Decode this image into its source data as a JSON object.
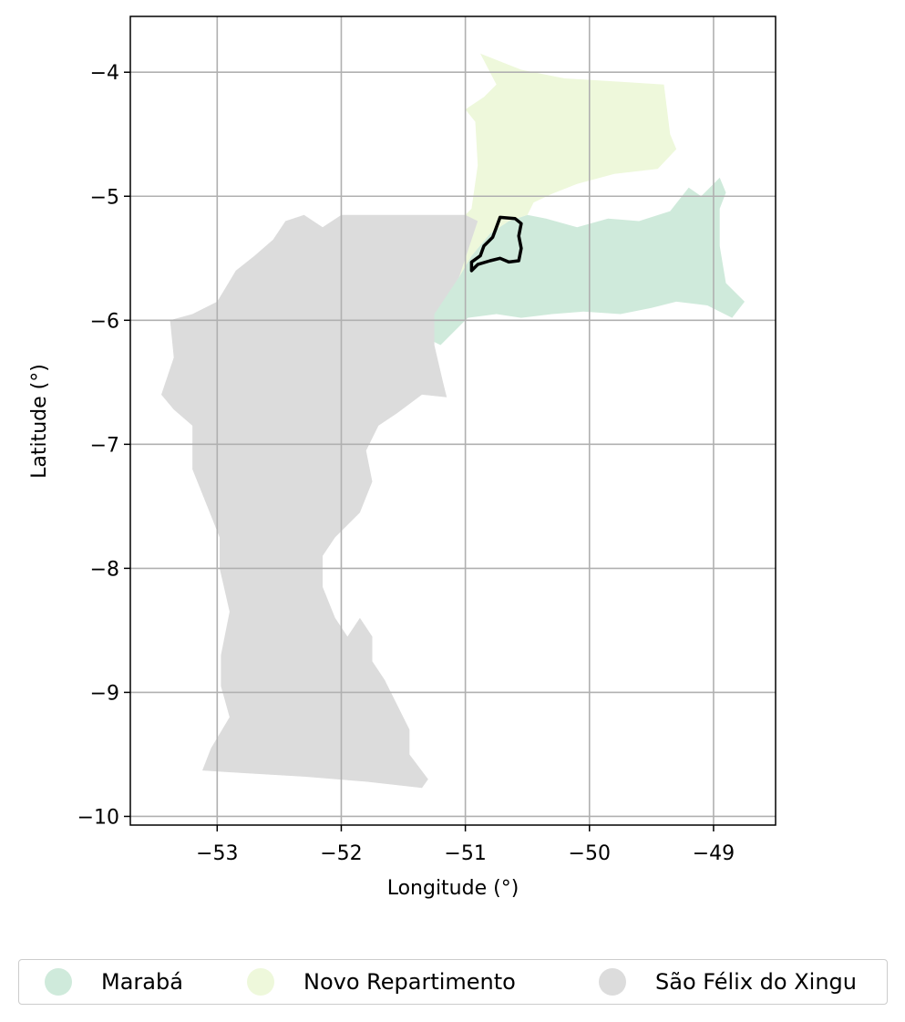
{
  "chart_data": {
    "type": "map",
    "xlabel": "Longitude (°)",
    "ylabel": "Latitude (°)",
    "xlim": [
      -53.7,
      -48.5
    ],
    "ylim": [
      -10.07,
      -3.55
    ],
    "grid": true,
    "legend_position": "bottom",
    "x_ticks": [
      {
        "value": -53,
        "label": "−53"
      },
      {
        "value": -52,
        "label": "−52"
      },
      {
        "value": -51,
        "label": "−51"
      },
      {
        "value": -50,
        "label": "−50"
      },
      {
        "value": -49,
        "label": "−49"
      }
    ],
    "y_ticks": [
      {
        "value": -4,
        "label": "−4"
      },
      {
        "value": -5,
        "label": "−5"
      },
      {
        "value": -6,
        "label": "−6"
      },
      {
        "value": -7,
        "label": "−7"
      },
      {
        "value": -8,
        "label": "−8"
      },
      {
        "value": -9,
        "label": "−9"
      },
      {
        "value": -10,
        "label": "−10"
      }
    ],
    "regions": [
      {
        "name": "Marabá",
        "color": "#cfeadb",
        "polygon": [
          [
            -50.35,
            -5.18
          ],
          [
            -50.1,
            -5.25
          ],
          [
            -49.85,
            -5.18
          ],
          [
            -49.6,
            -5.2
          ],
          [
            -49.35,
            -5.12
          ],
          [
            -49.2,
            -4.93
          ],
          [
            -49.1,
            -5.0
          ],
          [
            -49.0,
            -4.9
          ],
          [
            -48.95,
            -4.85
          ],
          [
            -48.9,
            -4.97
          ],
          [
            -48.95,
            -5.1
          ],
          [
            -48.95,
            -5.4
          ],
          [
            -48.9,
            -5.7
          ],
          [
            -48.75,
            -5.85
          ],
          [
            -48.85,
            -5.98
          ],
          [
            -49.05,
            -5.88
          ],
          [
            -49.3,
            -5.85
          ],
          [
            -49.5,
            -5.9
          ],
          [
            -49.75,
            -5.95
          ],
          [
            -50.05,
            -5.93
          ],
          [
            -50.3,
            -5.95
          ],
          [
            -50.55,
            -5.98
          ],
          [
            -50.75,
            -5.95
          ],
          [
            -50.98,
            -5.98
          ],
          [
            -51.1,
            -6.1
          ],
          [
            -51.2,
            -6.2
          ],
          [
            -51.3,
            -6.15
          ],
          [
            -51.4,
            -6.0
          ],
          [
            -51.2,
            -5.85
          ],
          [
            -51.05,
            -5.65
          ],
          [
            -50.95,
            -5.48
          ],
          [
            -50.8,
            -5.3
          ],
          [
            -50.65,
            -5.2
          ],
          [
            -50.5,
            -5.15
          ]
        ]
      },
      {
        "name": "Novo Repartimento",
        "color": "#eef8db",
        "polygon": [
          [
            -50.88,
            -3.85
          ],
          [
            -50.55,
            -3.98
          ],
          [
            -50.2,
            -4.05
          ],
          [
            -49.7,
            -4.08
          ],
          [
            -49.4,
            -4.1
          ],
          [
            -49.35,
            -4.5
          ],
          [
            -49.3,
            -4.62
          ],
          [
            -49.45,
            -4.78
          ],
          [
            -49.8,
            -4.82
          ],
          [
            -50.1,
            -4.9
          ],
          [
            -50.3,
            -4.98
          ],
          [
            -50.45,
            -5.05
          ],
          [
            -50.5,
            -5.15
          ],
          [
            -50.65,
            -5.2
          ],
          [
            -50.8,
            -5.3
          ],
          [
            -50.95,
            -5.48
          ],
          [
            -51.05,
            -5.65
          ],
          [
            -51.1,
            -5.45
          ],
          [
            -51.05,
            -5.2
          ],
          [
            -50.95,
            -5.1
          ],
          [
            -50.9,
            -4.75
          ],
          [
            -50.92,
            -4.4
          ],
          [
            -51.0,
            -4.3
          ],
          [
            -50.85,
            -4.2
          ],
          [
            -50.75,
            -4.1
          ]
        ]
      },
      {
        "name": "São Félix do Xingu",
        "color": "#dcdcdc",
        "polygon": [
          [
            -52.0,
            -5.15
          ],
          [
            -51.7,
            -5.15
          ],
          [
            -51.3,
            -5.15
          ],
          [
            -51.0,
            -5.15
          ],
          [
            -50.9,
            -5.2
          ],
          [
            -50.95,
            -5.35
          ],
          [
            -51.0,
            -5.5
          ],
          [
            -51.05,
            -5.65
          ],
          [
            -51.15,
            -5.8
          ],
          [
            -51.25,
            -5.95
          ],
          [
            -51.25,
            -6.2
          ],
          [
            -51.18,
            -6.5
          ],
          [
            -51.15,
            -6.62
          ],
          [
            -51.35,
            -6.6
          ],
          [
            -51.55,
            -6.75
          ],
          [
            -51.7,
            -6.85
          ],
          [
            -51.8,
            -7.05
          ],
          [
            -51.75,
            -7.3
          ],
          [
            -51.85,
            -7.55
          ],
          [
            -52.05,
            -7.75
          ],
          [
            -52.15,
            -7.9
          ],
          [
            -52.15,
            -8.15
          ],
          [
            -52.05,
            -8.4
          ],
          [
            -51.95,
            -8.55
          ],
          [
            -51.85,
            -8.4
          ],
          [
            -51.75,
            -8.55
          ],
          [
            -51.75,
            -8.75
          ],
          [
            -51.65,
            -8.9
          ],
          [
            -51.55,
            -9.1
          ],
          [
            -51.45,
            -9.3
          ],
          [
            -51.45,
            -9.5
          ],
          [
            -51.3,
            -9.7
          ],
          [
            -51.35,
            -9.77
          ],
          [
            -51.8,
            -9.72
          ],
          [
            -52.3,
            -9.68
          ],
          [
            -52.8,
            -9.65
          ],
          [
            -53.12,
            -9.63
          ],
          [
            -53.05,
            -9.45
          ],
          [
            -52.9,
            -9.2
          ],
          [
            -52.97,
            -8.95
          ],
          [
            -52.97,
            -8.7
          ],
          [
            -52.9,
            -8.35
          ],
          [
            -52.98,
            -8.0
          ],
          [
            -52.98,
            -7.75
          ],
          [
            -53.1,
            -7.45
          ],
          [
            -53.2,
            -7.2
          ],
          [
            -53.2,
            -6.85
          ],
          [
            -53.35,
            -6.72
          ],
          [
            -53.45,
            -6.6
          ],
          [
            -53.35,
            -6.3
          ],
          [
            -53.38,
            -6.0
          ],
          [
            -53.2,
            -5.95
          ],
          [
            -53.0,
            -5.85
          ],
          [
            -52.85,
            -5.6
          ],
          [
            -52.7,
            -5.48
          ],
          [
            -52.55,
            -5.35
          ],
          [
            -52.45,
            -5.2
          ],
          [
            -52.3,
            -5.15
          ],
          [
            -52.15,
            -5.25
          ]
        ]
      }
    ],
    "highlight_outline": {
      "color": "#000000",
      "polygon": [
        [
          -50.72,
          -5.17
        ],
        [
          -50.6,
          -5.18
        ],
        [
          -50.55,
          -5.22
        ],
        [
          -50.57,
          -5.32
        ],
        [
          -50.55,
          -5.42
        ],
        [
          -50.57,
          -5.52
        ],
        [
          -50.65,
          -5.53
        ],
        [
          -50.72,
          -5.5
        ],
        [
          -50.8,
          -5.52
        ],
        [
          -50.9,
          -5.55
        ],
        [
          -50.95,
          -5.6
        ],
        [
          -50.95,
          -5.53
        ],
        [
          -50.88,
          -5.48
        ],
        [
          -50.85,
          -5.4
        ],
        [
          -50.78,
          -5.33
        ],
        [
          -50.75,
          -5.25
        ]
      ]
    },
    "legend": [
      {
        "label": "Marabá",
        "color": "#cfeadb"
      },
      {
        "label": "Novo Repartimento",
        "color": "#eef8db"
      },
      {
        "label": "São Félix do Xingu",
        "color": "#dcdcdc"
      }
    ]
  }
}
